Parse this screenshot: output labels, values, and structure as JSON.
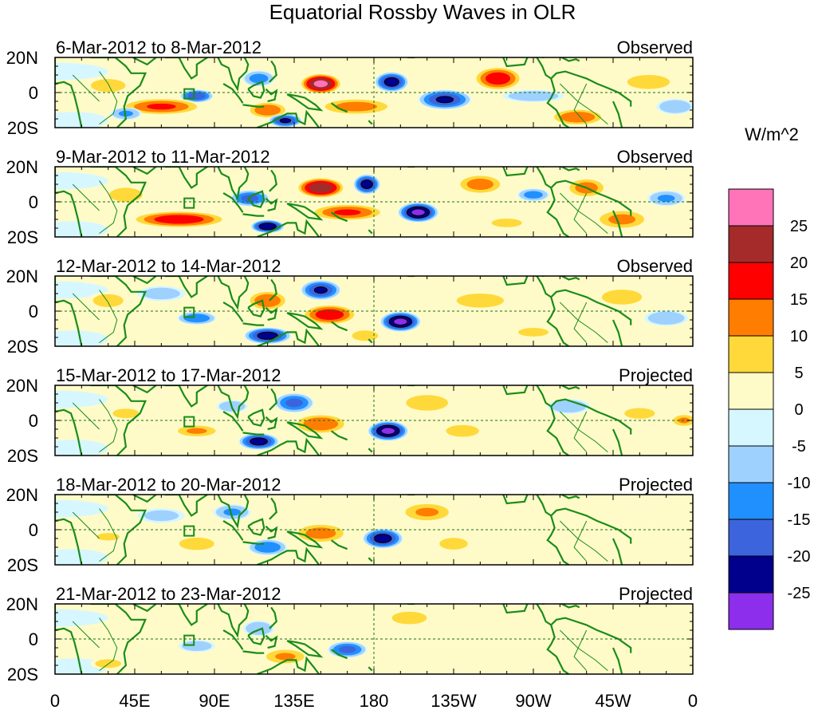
{
  "chart_data": {
    "type": "heatmap",
    "title": "Equatorial Rossby Waves in OLR",
    "x_axis": {
      "ticks": [
        "0",
        "45E",
        "90E",
        "135E",
        "180",
        "135W",
        "90W",
        "45W",
        "0"
      ],
      "tick_lons": [
        0,
        45,
        90,
        135,
        180,
        225,
        270,
        315,
        360
      ],
      "range": [
        0,
        360
      ]
    },
    "y_axis": {
      "ticks": [
        "20N",
        "0",
        "20S"
      ],
      "tick_lats": [
        20,
        0,
        -20
      ],
      "range": [
        -20,
        20
      ]
    },
    "colorbar": {
      "units": "W/m^2",
      "levels": [
        25,
        20,
        15,
        10,
        5,
        0,
        -5,
        -10,
        -15,
        -20,
        -25
      ],
      "colors": [
        "#ff73b9",
        "#a52a2a",
        "#ff0000",
        "#ff7d00",
        "#ffd93a",
        "#fffbc8",
        "#d6f7ff",
        "#9fd1ff",
        "#2190ff",
        "#3c64dc",
        "#00008c",
        "#8c2eeb"
      ]
    },
    "panels": [
      {
        "period": "6-Mar-2012 to 8-Mar-2012",
        "kind": "Observed",
        "blobs": [
          {
            "lon": 150,
            "lat": 5,
            "rx": 12,
            "ry": 6,
            "v": 26
          },
          {
            "lon": 190,
            "lat": 6,
            "rx": 10,
            "ry": 6,
            "v": -22
          },
          {
            "lon": 250,
            "lat": 8,
            "rx": 14,
            "ry": 7,
            "v": 18
          },
          {
            "lon": 220,
            "lat": -4,
            "rx": 16,
            "ry": 6,
            "v": -20
          },
          {
            "lon": 115,
            "lat": 8,
            "rx": 10,
            "ry": 5,
            "v": -12
          },
          {
            "lon": 80,
            "lat": -2,
            "rx": 10,
            "ry": 4,
            "v": -18
          },
          {
            "lon": 60,
            "lat": -8,
            "rx": 24,
            "ry": 5,
            "v": 15
          },
          {
            "lon": 120,
            "lat": -10,
            "rx": 12,
            "ry": 5,
            "v": 14
          },
          {
            "lon": 130,
            "lat": -16,
            "rx": 10,
            "ry": 4,
            "v": -20
          },
          {
            "lon": 170,
            "lat": -8,
            "rx": 22,
            "ry": 5,
            "v": 12
          },
          {
            "lon": 295,
            "lat": -14,
            "rx": 16,
            "ry": 5,
            "v": 14
          },
          {
            "lon": 270,
            "lat": -2,
            "rx": 20,
            "ry": 4,
            "v": -8
          },
          {
            "lon": 30,
            "lat": 4,
            "rx": 16,
            "ry": 6,
            "v": 6
          },
          {
            "lon": 335,
            "lat": 6,
            "rx": 18,
            "ry": 6,
            "v": 7
          },
          {
            "lon": 40,
            "lat": -12,
            "rx": 10,
            "ry": 4,
            "v": -10
          },
          {
            "lon": 350,
            "lat": -8,
            "rx": 12,
            "ry": 5,
            "v": -9
          }
        ]
      },
      {
        "period": "9-Mar-2012 to 11-Mar-2012",
        "kind": "Observed",
        "blobs": [
          {
            "lon": 150,
            "lat": 8,
            "rx": 14,
            "ry": 6,
            "v": 24
          },
          {
            "lon": 176,
            "lat": 10,
            "rx": 8,
            "ry": 6,
            "v": -22
          },
          {
            "lon": 205,
            "lat": -6,
            "rx": 12,
            "ry": 6,
            "v": -26
          },
          {
            "lon": 165,
            "lat": -6,
            "rx": 22,
            "ry": 5,
            "v": 15
          },
          {
            "lon": 110,
            "lat": 2,
            "rx": 12,
            "ry": 5,
            "v": -16
          },
          {
            "lon": 70,
            "lat": -10,
            "rx": 28,
            "ry": 5,
            "v": 18
          },
          {
            "lon": 120,
            "lat": -14,
            "rx": 10,
            "ry": 4,
            "v": -24
          },
          {
            "lon": 240,
            "lat": 10,
            "rx": 14,
            "ry": 6,
            "v": 12
          },
          {
            "lon": 270,
            "lat": 4,
            "rx": 10,
            "ry": 4,
            "v": -12
          },
          {
            "lon": 300,
            "lat": 8,
            "rx": 12,
            "ry": 6,
            "v": 12
          },
          {
            "lon": 320,
            "lat": -10,
            "rx": 16,
            "ry": 6,
            "v": 11
          },
          {
            "lon": 40,
            "lat": 4,
            "rx": 14,
            "ry": 6,
            "v": 7
          },
          {
            "lon": 345,
            "lat": 2,
            "rx": 12,
            "ry": 5,
            "v": -10
          },
          {
            "lon": 255,
            "lat": -12,
            "rx": 14,
            "ry": 4,
            "v": 6
          }
        ]
      },
      {
        "period": "12-Mar-2012 to 14-Mar-2012",
        "kind": "Observed",
        "blobs": [
          {
            "lon": 150,
            "lat": 12,
            "rx": 12,
            "ry": 6,
            "v": -20
          },
          {
            "lon": 155,
            "lat": -2,
            "rx": 16,
            "ry": 6,
            "v": 18
          },
          {
            "lon": 195,
            "lat": -6,
            "rx": 12,
            "ry": 6,
            "v": -26
          },
          {
            "lon": 120,
            "lat": 6,
            "rx": 12,
            "ry": 6,
            "v": 14
          },
          {
            "lon": 120,
            "lat": -14,
            "rx": 14,
            "ry": 5,
            "v": -22
          },
          {
            "lon": 80,
            "lat": -4,
            "rx": 12,
            "ry": 4,
            "v": -14
          },
          {
            "lon": 30,
            "lat": 6,
            "rx": 14,
            "ry": 6,
            "v": 6
          },
          {
            "lon": 60,
            "lat": 10,
            "rx": 16,
            "ry": 5,
            "v": -7
          },
          {
            "lon": 320,
            "lat": 8,
            "rx": 16,
            "ry": 6,
            "v": 8
          },
          {
            "lon": 240,
            "lat": 6,
            "rx": 20,
            "ry": 6,
            "v": 7
          },
          {
            "lon": 270,
            "lat": -12,
            "rx": 14,
            "ry": 4,
            "v": 6
          },
          {
            "lon": 345,
            "lat": -4,
            "rx": 14,
            "ry": 5,
            "v": -9
          },
          {
            "lon": 175,
            "lat": -14,
            "rx": 10,
            "ry": 4,
            "v": 9
          }
        ]
      },
      {
        "period": "15-Mar-2012 to 17-Mar-2012",
        "kind": "Projected",
        "blobs": [
          {
            "lon": 135,
            "lat": 10,
            "rx": 12,
            "ry": 6,
            "v": -16
          },
          {
            "lon": 150,
            "lat": -2,
            "rx": 16,
            "ry": 6,
            "v": 14
          },
          {
            "lon": 188,
            "lat": -6,
            "rx": 12,
            "ry": 6,
            "v": -26
          },
          {
            "lon": 115,
            "lat": -12,
            "rx": 12,
            "ry": 5,
            "v": -22
          },
          {
            "lon": 80,
            "lat": -6,
            "rx": 14,
            "ry": 4,
            "v": 10
          },
          {
            "lon": 210,
            "lat": 10,
            "rx": 16,
            "ry": 6,
            "v": 9
          },
          {
            "lon": 230,
            "lat": -6,
            "rx": 14,
            "ry": 5,
            "v": 7
          },
          {
            "lon": 290,
            "lat": 8,
            "rx": 14,
            "ry": 5,
            "v": -8
          },
          {
            "lon": 330,
            "lat": 4,
            "rx": 14,
            "ry": 5,
            "v": 6
          },
          {
            "lon": 355,
            "lat": 0,
            "rx": 8,
            "ry": 4,
            "v": 10
          },
          {
            "lon": 40,
            "lat": 4,
            "rx": 14,
            "ry": 5,
            "v": 5
          },
          {
            "lon": 100,
            "lat": 8,
            "rx": 10,
            "ry": 4,
            "v": -9
          }
        ]
      },
      {
        "period": "18-Mar-2012 to 20-Mar-2012",
        "kind": "Projected",
        "blobs": [
          {
            "lon": 185,
            "lat": -5,
            "rx": 12,
            "ry": 6,
            "v": -22
          },
          {
            "lon": 150,
            "lat": -2,
            "rx": 16,
            "ry": 6,
            "v": 12
          },
          {
            "lon": 120,
            "lat": -10,
            "rx": 12,
            "ry": 5,
            "v": -14
          },
          {
            "lon": 80,
            "lat": -8,
            "rx": 14,
            "ry": 5,
            "v": 8
          },
          {
            "lon": 100,
            "lat": 10,
            "rx": 12,
            "ry": 5,
            "v": -10
          },
          {
            "lon": 210,
            "lat": 10,
            "rx": 16,
            "ry": 6,
            "v": 10
          },
          {
            "lon": 225,
            "lat": -8,
            "rx": 12,
            "ry": 5,
            "v": 7
          },
          {
            "lon": 60,
            "lat": 8,
            "rx": 16,
            "ry": 5,
            "v": -6
          },
          {
            "lon": 30,
            "lat": -4,
            "rx": 12,
            "ry": 4,
            "v": 5
          },
          {
            "lon": 300,
            "lat": 2,
            "rx": 16,
            "ry": 5,
            "v": 3
          }
        ]
      },
      {
        "period": "21-Mar-2012 to 23-Mar-2012",
        "kind": "Projected",
        "blobs": [
          {
            "lon": 165,
            "lat": -6,
            "rx": 12,
            "ry": 5,
            "v": -16
          },
          {
            "lon": 130,
            "lat": -10,
            "rx": 14,
            "ry": 5,
            "v": 10
          },
          {
            "lon": 115,
            "lat": 6,
            "rx": 10,
            "ry": 5,
            "v": -9
          },
          {
            "lon": 200,
            "lat": 12,
            "rx": 14,
            "ry": 5,
            "v": 8
          },
          {
            "lon": 80,
            "lat": -4,
            "rx": 12,
            "ry": 4,
            "v": -8
          },
          {
            "lon": 40,
            "lat": 6,
            "rx": 14,
            "ry": 5,
            "v": 4
          },
          {
            "lon": 30,
            "lat": -14,
            "rx": 12,
            "ry": 4,
            "v": 6
          },
          {
            "lon": 260,
            "lat": 4,
            "rx": 20,
            "ry": 6,
            "v": 2
          }
        ]
      }
    ]
  }
}
